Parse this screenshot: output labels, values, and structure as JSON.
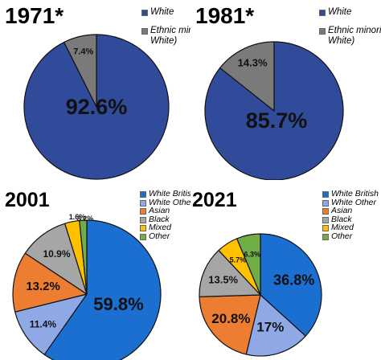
{
  "chart_data": [
    {
      "type": "pie",
      "title": "1971*",
      "categories": [
        "White",
        "Ethnic minority (non-White)"
      ],
      "values": [
        92.6,
        7.4
      ],
      "labels": [
        "92.6%",
        "7.4%"
      ],
      "colors": [
        "#2f4b9a",
        "#7a7a7a"
      ],
      "legend": [
        {
          "text": "White",
          "color": "#2f4b9a"
        },
        {
          "text": "Ethnic minority (non-White)",
          "color": "#7a7a7a"
        }
      ],
      "legend_position": "top-right"
    },
    {
      "type": "pie",
      "title": "1981*",
      "categories": [
        "White",
        "Ethnic minority (non-White)"
      ],
      "values": [
        85.7,
        14.3
      ],
      "labels": [
        "85.7%",
        "14.3%"
      ],
      "colors": [
        "#2f4b9a",
        "#7a7a7a"
      ],
      "legend": [
        {
          "text": "White",
          "color": "#2f4b9a"
        },
        {
          "text": "Ethnic minority (non-White)",
          "color": "#7a7a7a"
        }
      ],
      "legend_position": "top-right"
    },
    {
      "type": "pie",
      "title": "2001",
      "categories": [
        "White British",
        "White Other",
        "Asian",
        "Black",
        "Mixed",
        "Other"
      ],
      "values": [
        59.8,
        11.4,
        13.2,
        10.9,
        3.2,
        1.6
      ],
      "labels": [
        "59.8%",
        "11.4%",
        "13.2%",
        "10.9%",
        "3.2%",
        "1.6%"
      ],
      "colors": [
        "#1b6fd0",
        "#8fa9e6",
        "#ed7d31",
        "#a6a6a6",
        "#ffc000",
        "#70ad47"
      ],
      "legend": [
        {
          "text": "White British",
          "color": "#1b6fd0"
        },
        {
          "text": "White Other",
          "color": "#8fa9e6"
        },
        {
          "text": "Asian",
          "color": "#ed7d31"
        },
        {
          "text": "Black",
          "color": "#a6a6a6"
        },
        {
          "text": "Mixed",
          "color": "#ffc000"
        },
        {
          "text": "Other",
          "color": "#70ad47"
        }
      ],
      "legend_position": "top-right"
    },
    {
      "type": "pie",
      "title": "2021",
      "categories": [
        "White British",
        "White Other",
        "Asian",
        "Black",
        "Mixed",
        "Other"
      ],
      "values": [
        36.8,
        17,
        20.8,
        13.5,
        5.7,
        6.3
      ],
      "labels": [
        "36.8%",
        "17%",
        "20.8%",
        "13.5%",
        "5.7%",
        "6.3%"
      ],
      "colors": [
        "#1b6fd0",
        "#8fa9e6",
        "#ed7d31",
        "#a6a6a6",
        "#ffc000",
        "#70ad47"
      ],
      "legend": [
        {
          "text": "White British",
          "color": "#1b6fd0"
        },
        {
          "text": "White Other",
          "color": "#8fa9e6"
        },
        {
          "text": "Asian",
          "color": "#ed7d31"
        },
        {
          "text": "Black",
          "color": "#a6a6a6"
        },
        {
          "text": "Mixed",
          "color": "#ffc000"
        },
        {
          "text": "Other",
          "color": "#70ad47"
        }
      ],
      "legend_position": "top-right"
    }
  ]
}
